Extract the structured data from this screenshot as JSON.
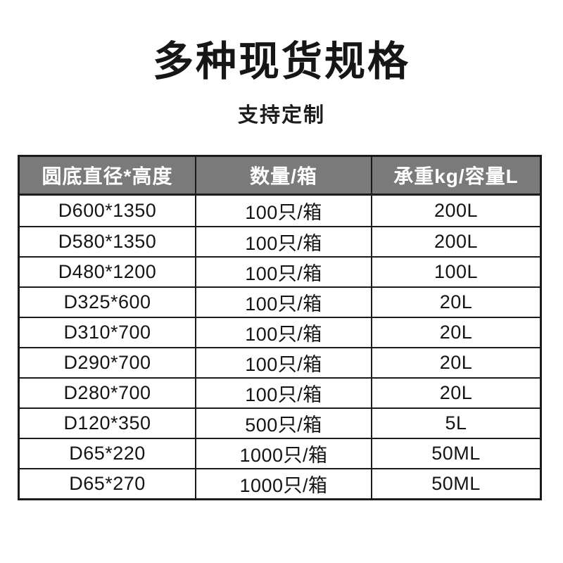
{
  "page": {
    "title": "多种现货规格",
    "subtitle": "支持定制"
  },
  "table": {
    "headers": [
      "圆底直径*高度",
      "数量/箱",
      "承重kg/容量L"
    ],
    "rows": [
      [
        "D600*1350",
        "100只/箱",
        "200L"
      ],
      [
        "D580*1350",
        "100只/箱",
        "200L"
      ],
      [
        "D480*1200",
        "100只/箱",
        "100L"
      ],
      [
        "D325*600",
        "100只/箱",
        "20L"
      ],
      [
        "D310*700",
        "100只/箱",
        "20L"
      ],
      [
        "D290*700",
        "100只/箱",
        "20L"
      ],
      [
        "D280*700",
        "100只/箱",
        "20L"
      ],
      [
        "D120*350",
        "500只/箱",
        "5L"
      ],
      [
        "D65*220",
        "1000只/箱",
        "50ML"
      ],
      [
        "D65*270",
        "1000只/箱",
        "50ML"
      ]
    ]
  },
  "colors": {
    "header_bg": "#7a7a7a",
    "header_text": "#ffffff",
    "border": "#1b1b1b",
    "body_text": "#141414",
    "background": "#ffffff"
  }
}
